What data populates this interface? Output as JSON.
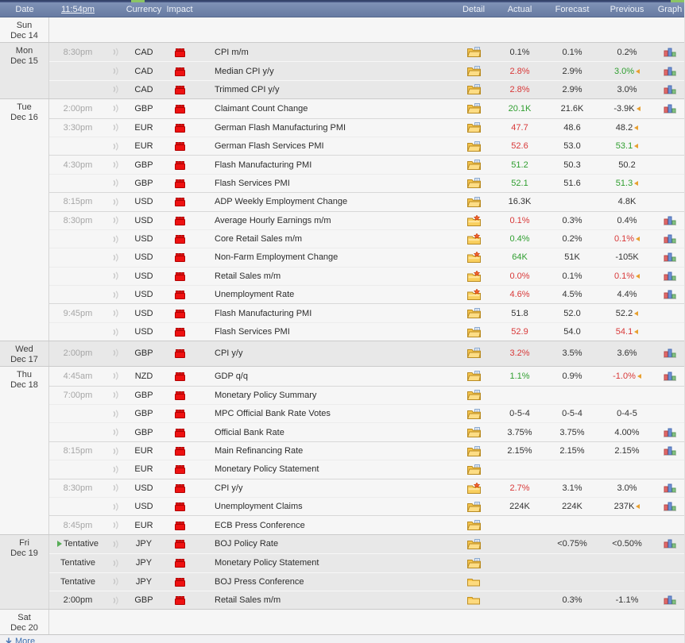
{
  "header": {
    "columns": {
      "date": "Date",
      "time_link": "11:54pm",
      "currency": "Currency",
      "impact": "Impact",
      "detail": "Detail",
      "actual": "Actual",
      "forecast": "Forecast",
      "previous": "Previous",
      "graph": "Graph"
    }
  },
  "footer": {
    "more_label": "More"
  },
  "colors": {
    "header_bg": "#7386ad",
    "accent_green": "#8bc564",
    "good": "#2f9e2f",
    "bad": "#d83838",
    "neutral": "#333333",
    "revision": "#e8a030",
    "link": "#3f6fb0",
    "impact_high": "#ee1111"
  },
  "days": [
    {
      "weekday": "Sun",
      "date": "Dec 14",
      "shade": "light",
      "events": []
    },
    {
      "weekday": "Mon",
      "date": "Dec 15",
      "shade": "gray",
      "events": [
        {
          "time": "8:30pm",
          "time_style": "past",
          "currency": "CAD",
          "impact": "high",
          "name": "CPI m/m",
          "detail": "open",
          "actual": {
            "text": "0.1%",
            "tone": "neutral"
          },
          "forecast": "0.1%",
          "previous": {
            "text": "0.2%",
            "tone": "neutral",
            "revised": false
          },
          "graph": true
        },
        {
          "time": "",
          "time_style": "past",
          "currency": "CAD",
          "impact": "high",
          "name": "Median CPI y/y",
          "detail": "open",
          "actual": {
            "text": "2.8%",
            "tone": "bad"
          },
          "forecast": "2.9%",
          "previous": {
            "text": "3.0%",
            "tone": "good",
            "revised": true
          },
          "graph": true
        },
        {
          "time": "",
          "time_style": "past",
          "currency": "CAD",
          "impact": "high",
          "name": "Trimmed CPI y/y",
          "detail": "open",
          "actual": {
            "text": "2.8%",
            "tone": "bad"
          },
          "forecast": "2.9%",
          "previous": {
            "text": "3.0%",
            "tone": "neutral",
            "revised": false
          },
          "graph": true
        }
      ]
    },
    {
      "weekday": "Tue",
      "date": "Dec 16",
      "shade": "light",
      "events": [
        {
          "time": "2:00pm",
          "time_style": "past",
          "currency": "GBP",
          "impact": "high",
          "name": "Claimant Count Change",
          "detail": "open",
          "actual": {
            "text": "20.1K",
            "tone": "good"
          },
          "forecast": "21.6K",
          "previous": {
            "text": "-3.9K",
            "tone": "neutral",
            "revised": true
          },
          "graph": true
        },
        {
          "time": "3:30pm",
          "time_style": "past",
          "currency": "EUR",
          "impact": "high",
          "name": "German Flash Manufacturing PMI",
          "detail": "open",
          "actual": {
            "text": "47.7",
            "tone": "bad"
          },
          "forecast": "48.6",
          "previous": {
            "text": "48.2",
            "tone": "neutral",
            "revised": true
          },
          "graph": false
        },
        {
          "time": "",
          "time_style": "past",
          "currency": "EUR",
          "impact": "high",
          "name": "German Flash Services PMI",
          "detail": "open",
          "actual": {
            "text": "52.6",
            "tone": "bad"
          },
          "forecast": "53.0",
          "previous": {
            "text": "53.1",
            "tone": "good",
            "revised": true
          },
          "graph": false
        },
        {
          "time": "4:30pm",
          "time_style": "past",
          "currency": "GBP",
          "impact": "high",
          "name": "Flash Manufacturing PMI",
          "detail": "open",
          "actual": {
            "text": "51.2",
            "tone": "good"
          },
          "forecast": "50.3",
          "previous": {
            "text": "50.2",
            "tone": "neutral",
            "revised": false
          },
          "graph": false
        },
        {
          "time": "",
          "time_style": "past",
          "currency": "GBP",
          "impact": "high",
          "name": "Flash Services PMI",
          "detail": "open",
          "actual": {
            "text": "52.1",
            "tone": "good"
          },
          "forecast": "51.6",
          "previous": {
            "text": "51.3",
            "tone": "good",
            "revised": true
          },
          "graph": false
        },
        {
          "time": "8:15pm",
          "time_style": "past",
          "currency": "USD",
          "impact": "high",
          "name": "ADP Weekly Employment Change",
          "detail": "open",
          "actual": {
            "text": "16.3K",
            "tone": "neutral"
          },
          "forecast": "",
          "previous": {
            "text": "4.8K",
            "tone": "neutral",
            "revised": false
          },
          "graph": false
        },
        {
          "time": "8:30pm",
          "time_style": "past",
          "currency": "USD",
          "impact": "high",
          "name": "Average Hourly Earnings m/m",
          "detail": "star",
          "actual": {
            "text": "0.1%",
            "tone": "bad"
          },
          "forecast": "0.3%",
          "previous": {
            "text": "0.4%",
            "tone": "neutral",
            "revised": false
          },
          "graph": true
        },
        {
          "time": "",
          "time_style": "past",
          "currency": "USD",
          "impact": "high",
          "name": "Core Retail Sales m/m",
          "detail": "star",
          "actual": {
            "text": "0.4%",
            "tone": "good"
          },
          "forecast": "0.2%",
          "previous": {
            "text": "0.1%",
            "tone": "bad",
            "revised": true
          },
          "graph": true
        },
        {
          "time": "",
          "time_style": "past",
          "currency": "USD",
          "impact": "high",
          "name": "Non-Farm Employment Change",
          "detail": "star",
          "actual": {
            "text": "64K",
            "tone": "good"
          },
          "forecast": "51K",
          "previous": {
            "text": "-105K",
            "tone": "neutral",
            "revised": false
          },
          "graph": true
        },
        {
          "time": "",
          "time_style": "past",
          "currency": "USD",
          "impact": "high",
          "name": "Retail Sales m/m",
          "detail": "star",
          "actual": {
            "text": "0.0%",
            "tone": "bad"
          },
          "forecast": "0.1%",
          "previous": {
            "text": "0.1%",
            "tone": "bad",
            "revised": true
          },
          "graph": true
        },
        {
          "time": "",
          "time_style": "past",
          "currency": "USD",
          "impact": "high",
          "name": "Unemployment Rate",
          "detail": "star",
          "actual": {
            "text": "4.6%",
            "tone": "bad"
          },
          "forecast": "4.5%",
          "previous": {
            "text": "4.4%",
            "tone": "neutral",
            "revised": false
          },
          "graph": true
        },
        {
          "time": "9:45pm",
          "time_style": "past",
          "currency": "USD",
          "impact": "high",
          "name": "Flash Manufacturing PMI",
          "detail": "open",
          "actual": {
            "text": "51.8",
            "tone": "neutral"
          },
          "forecast": "52.0",
          "previous": {
            "text": "52.2",
            "tone": "neutral",
            "revised": true
          },
          "graph": false
        },
        {
          "time": "",
          "time_style": "past",
          "currency": "USD",
          "impact": "high",
          "name": "Flash Services PMI",
          "detail": "open",
          "actual": {
            "text": "52.9",
            "tone": "bad"
          },
          "forecast": "54.0",
          "previous": {
            "text": "54.1",
            "tone": "bad",
            "revised": true
          },
          "graph": false
        }
      ]
    },
    {
      "weekday": "Wed",
      "date": "Dec 17",
      "shade": "gray",
      "events": [
        {
          "time": "2:00pm",
          "time_style": "past",
          "currency": "GBP",
          "impact": "high",
          "name": "CPI y/y",
          "detail": "open",
          "actual": {
            "text": "3.2%",
            "tone": "bad"
          },
          "forecast": "3.5%",
          "previous": {
            "text": "3.6%",
            "tone": "neutral",
            "revised": false
          },
          "graph": true
        }
      ]
    },
    {
      "weekday": "Thu",
      "date": "Dec 18",
      "shade": "light",
      "events": [
        {
          "time": "4:45am",
          "time_style": "past",
          "currency": "NZD",
          "impact": "high",
          "name": "GDP q/q",
          "detail": "open",
          "actual": {
            "text": "1.1%",
            "tone": "good"
          },
          "forecast": "0.9%",
          "previous": {
            "text": "-1.0%",
            "tone": "bad",
            "revised": true
          },
          "graph": true
        },
        {
          "time": "7:00pm",
          "time_style": "past",
          "currency": "GBP",
          "impact": "high",
          "name": "Monetary Policy Summary",
          "detail": "open",
          "actual": null,
          "forecast": "",
          "previous": null,
          "graph": false
        },
        {
          "time": "",
          "time_style": "past",
          "currency": "GBP",
          "impact": "high",
          "name": "MPC Official Bank Rate Votes",
          "detail": "open",
          "actual": {
            "text": "0-5-4",
            "tone": "neutral"
          },
          "forecast": "0-5-4",
          "previous": {
            "text": "0-4-5",
            "tone": "neutral",
            "revised": false
          },
          "graph": false
        },
        {
          "time": "",
          "time_style": "past",
          "currency": "GBP",
          "impact": "high",
          "name": "Official Bank Rate",
          "detail": "open",
          "actual": {
            "text": "3.75%",
            "tone": "neutral"
          },
          "forecast": "3.75%",
          "previous": {
            "text": "4.00%",
            "tone": "neutral",
            "revised": false
          },
          "graph": true
        },
        {
          "time": "8:15pm",
          "time_style": "past",
          "currency": "EUR",
          "impact": "high",
          "name": "Main Refinancing Rate",
          "detail": "open",
          "actual": {
            "text": "2.15%",
            "tone": "neutral"
          },
          "forecast": "2.15%",
          "previous": {
            "text": "2.15%",
            "tone": "neutral",
            "revised": false
          },
          "graph": true
        },
        {
          "time": "",
          "time_style": "past",
          "currency": "EUR",
          "impact": "high",
          "name": "Monetary Policy Statement",
          "detail": "open",
          "actual": null,
          "forecast": "",
          "previous": null,
          "graph": false
        },
        {
          "time": "8:30pm",
          "time_style": "past",
          "currency": "USD",
          "impact": "high",
          "name": "CPI y/y",
          "detail": "star",
          "actual": {
            "text": "2.7%",
            "tone": "bad"
          },
          "forecast": "3.1%",
          "previous": {
            "text": "3.0%",
            "tone": "neutral",
            "revised": false
          },
          "graph": true
        },
        {
          "time": "",
          "time_style": "past",
          "currency": "USD",
          "impact": "high",
          "name": "Unemployment Claims",
          "detail": "open",
          "actual": {
            "text": "224K",
            "tone": "neutral"
          },
          "forecast": "224K",
          "previous": {
            "text": "237K",
            "tone": "neutral",
            "revised": true
          },
          "graph": true
        },
        {
          "time": "8:45pm",
          "time_style": "past",
          "currency": "EUR",
          "impact": "high",
          "name": "ECB Press Conference",
          "detail": "open",
          "actual": null,
          "forecast": "",
          "previous": null,
          "graph": false
        }
      ]
    },
    {
      "weekday": "Fri",
      "date": "Dec 19",
      "shade": "gray",
      "events": [
        {
          "time": "Tentative",
          "time_style": "upcoming",
          "play": true,
          "currency": "JPY",
          "impact": "high",
          "name": "BOJ Policy Rate",
          "detail": "open",
          "actual": null,
          "forecast": "<0.75%",
          "previous": {
            "text": "<0.50%",
            "tone": "neutral",
            "revised": false
          },
          "graph": true
        },
        {
          "time": "Tentative",
          "time_style": "upcoming",
          "currency": "JPY",
          "impact": "high",
          "name": "Monetary Policy Statement",
          "detail": "open",
          "actual": null,
          "forecast": "",
          "previous": null,
          "graph": false
        },
        {
          "time": "Tentative",
          "time_style": "upcoming",
          "currency": "JPY",
          "impact": "high",
          "name": "BOJ Press Conference",
          "detail": "closed",
          "actual": null,
          "forecast": "",
          "previous": null,
          "graph": false
        },
        {
          "time": "2:00pm",
          "time_style": "upcoming",
          "currency": "GBP",
          "impact": "high",
          "name": "Retail Sales m/m",
          "detail": "closed",
          "actual": null,
          "forecast": "0.3%",
          "previous": {
            "text": "-1.1%",
            "tone": "neutral",
            "revised": false
          },
          "graph": true
        }
      ]
    },
    {
      "weekday": "Sat",
      "date": "Dec 20",
      "shade": "light",
      "events": []
    }
  ]
}
